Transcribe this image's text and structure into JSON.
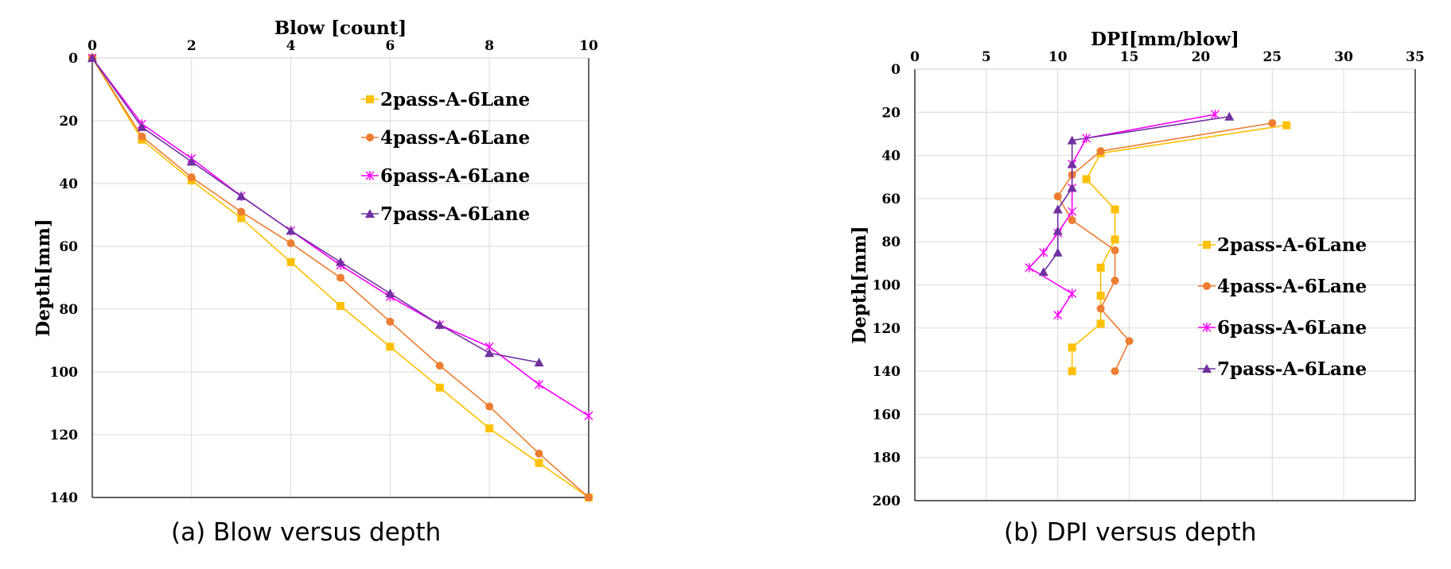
{
  "colors": {
    "2pass-A-6Lane": "#FFC000",
    "4pass-A-6Lane": "#ED7D31",
    "6pass-A-6Lane": "#FF00FF",
    "7pass-A-6Lane": "#7030A0"
  },
  "captions": {
    "a": "(a) Blow versus depth",
    "b": "(b) DPI versus depth"
  },
  "chart_data": [
    {
      "type": "line",
      "title": "",
      "xlabel": "Blow [count]",
      "ylabel": "Depth[mm]",
      "xlim": [
        0,
        10
      ],
      "ylim": [
        0,
        140
      ],
      "y_reversed": true,
      "x_axis_position": "top",
      "grid": true,
      "legend_position": "top-right",
      "xticks": [
        0,
        2,
        4,
        6,
        8,
        10
      ],
      "yticks": [
        0,
        20,
        40,
        60,
        80,
        100,
        120,
        140
      ],
      "series": [
        {
          "name": "2pass-A-6Lane",
          "marker": "square",
          "x": [
            0,
            1,
            2,
            3,
            4,
            5,
            6,
            7,
            8,
            9,
            10
          ],
          "y": [
            0,
            26,
            39,
            51,
            65,
            79,
            92,
            105,
            118,
            129,
            140
          ]
        },
        {
          "name": "4pass-A-6Lane",
          "marker": "circle",
          "x": [
            0,
            1,
            2,
            3,
            4,
            5,
            6,
            7,
            8,
            9,
            10
          ],
          "y": [
            0,
            25,
            38,
            49,
            59,
            70,
            84,
            98,
            111,
            126,
            140
          ]
        },
        {
          "name": "6pass-A-6Lane",
          "marker": "star",
          "x": [
            0,
            1,
            2,
            3,
            4,
            5,
            6,
            7,
            8,
            9,
            10
          ],
          "y": [
            0,
            21,
            32,
            44,
            55,
            66,
            76,
            85,
            92,
            104,
            114
          ]
        },
        {
          "name": "7pass-A-6Lane",
          "marker": "triangle",
          "x": [
            0,
            1,
            2,
            3,
            4,
            5,
            6,
            7,
            8,
            9
          ],
          "y": [
            0,
            22,
            33,
            44,
            55,
            65,
            75,
            85,
            94,
            97
          ]
        }
      ]
    },
    {
      "type": "line",
      "title": "",
      "xlabel": "DPI[mm/blow]",
      "ylabel": "Depth[mm]",
      "xlim": [
        0,
        35
      ],
      "ylim": [
        0,
        200
      ],
      "y_reversed": true,
      "x_axis_position": "top",
      "grid": true,
      "legend_position": "right",
      "xticks": [
        0,
        5,
        10,
        15,
        20,
        25,
        30,
        35
      ],
      "yticks": [
        0,
        20,
        40,
        60,
        80,
        100,
        120,
        140,
        160,
        180,
        200
      ],
      "series": [
        {
          "name": "2pass-A-6Lane",
          "marker": "square",
          "x": [
            26,
            13,
            12,
            14,
            14,
            13,
            13,
            13,
            11,
            11
          ],
          "y": [
            26,
            39,
            51,
            65,
            79,
            92,
            105,
            118,
            129,
            140
          ]
        },
        {
          "name": "4pass-A-6Lane",
          "marker": "circle",
          "x": [
            25,
            13,
            11,
            10,
            11,
            14,
            14,
            13,
            15,
            14
          ],
          "y": [
            25,
            38,
            49,
            59,
            70,
            84,
            98,
            111,
            126,
            140
          ]
        },
        {
          "name": "6pass-A-6Lane",
          "marker": "star",
          "x": [
            21,
            12,
            11,
            11,
            11,
            10,
            9,
            8,
            11,
            10
          ],
          "y": [
            21,
            32,
            44,
            55,
            66,
            76,
            85,
            92,
            104,
            114
          ]
        },
        {
          "name": "7pass-A-6Lane",
          "marker": "triangle",
          "x": [
            22,
            11,
            11,
            11,
            10,
            10,
            10,
            9
          ],
          "y": [
            22,
            33,
            44,
            55,
            65,
            75,
            85,
            94
          ]
        }
      ]
    }
  ]
}
